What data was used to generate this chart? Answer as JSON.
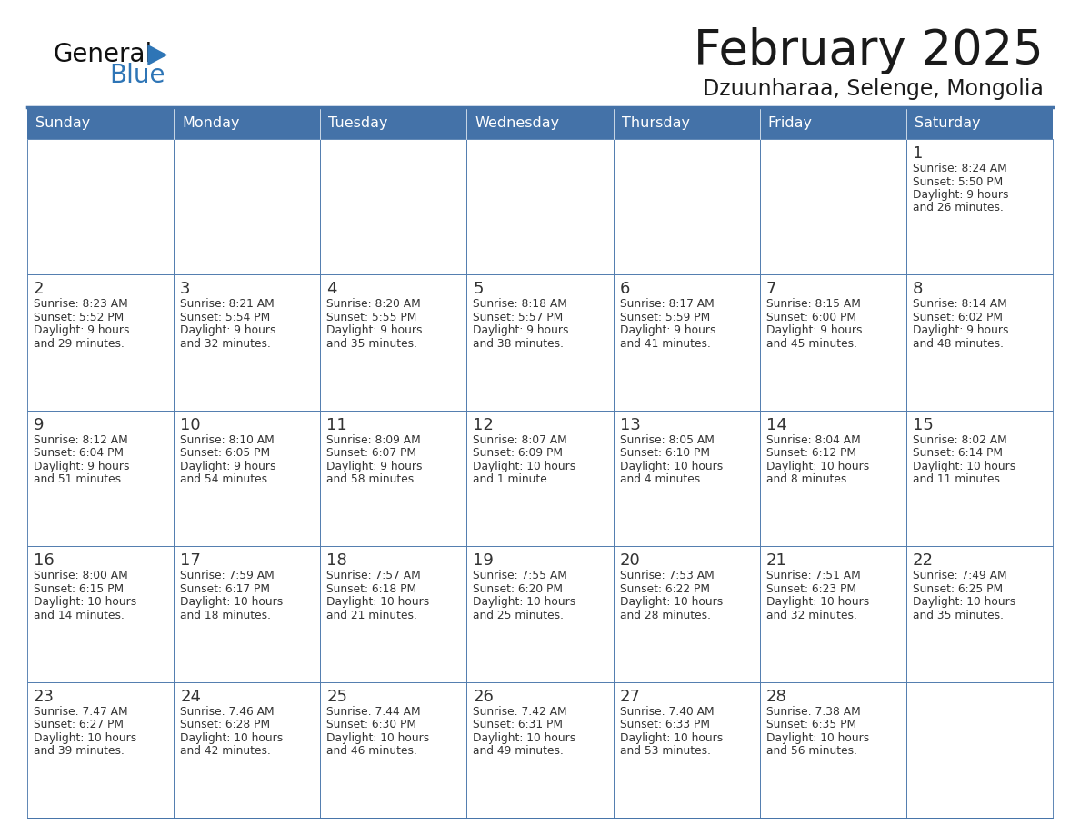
{
  "title": "February 2025",
  "subtitle": "Dzuunharaa, Selenge, Mongolia",
  "days_of_week": [
    "Sunday",
    "Monday",
    "Tuesday",
    "Wednesday",
    "Thursday",
    "Friday",
    "Saturday"
  ],
  "header_bg": "#4472a8",
  "header_text": "#FFFFFF",
  "cell_bg": "#FFFFFF",
  "cell_alt_bg": "#f0f4f8",
  "cell_border": "#4472a8",
  "day_num_color": "#333333",
  "info_text_color": "#333333",
  "title_color": "#1a1a1a",
  "subtitle_color": "#1a1a1a",
  "logo_general_color": "#111111",
  "logo_blue_color": "#2E75B6",
  "weeks": [
    [
      {
        "day": null,
        "info": ""
      },
      {
        "day": null,
        "info": ""
      },
      {
        "day": null,
        "info": ""
      },
      {
        "day": null,
        "info": ""
      },
      {
        "day": null,
        "info": ""
      },
      {
        "day": null,
        "info": ""
      },
      {
        "day": 1,
        "info": "Sunrise: 8:24 AM\nSunset: 5:50 PM\nDaylight: 9 hours\nand 26 minutes."
      }
    ],
    [
      {
        "day": 2,
        "info": "Sunrise: 8:23 AM\nSunset: 5:52 PM\nDaylight: 9 hours\nand 29 minutes."
      },
      {
        "day": 3,
        "info": "Sunrise: 8:21 AM\nSunset: 5:54 PM\nDaylight: 9 hours\nand 32 minutes."
      },
      {
        "day": 4,
        "info": "Sunrise: 8:20 AM\nSunset: 5:55 PM\nDaylight: 9 hours\nand 35 minutes."
      },
      {
        "day": 5,
        "info": "Sunrise: 8:18 AM\nSunset: 5:57 PM\nDaylight: 9 hours\nand 38 minutes."
      },
      {
        "day": 6,
        "info": "Sunrise: 8:17 AM\nSunset: 5:59 PM\nDaylight: 9 hours\nand 41 minutes."
      },
      {
        "day": 7,
        "info": "Sunrise: 8:15 AM\nSunset: 6:00 PM\nDaylight: 9 hours\nand 45 minutes."
      },
      {
        "day": 8,
        "info": "Sunrise: 8:14 AM\nSunset: 6:02 PM\nDaylight: 9 hours\nand 48 minutes."
      }
    ],
    [
      {
        "day": 9,
        "info": "Sunrise: 8:12 AM\nSunset: 6:04 PM\nDaylight: 9 hours\nand 51 minutes."
      },
      {
        "day": 10,
        "info": "Sunrise: 8:10 AM\nSunset: 6:05 PM\nDaylight: 9 hours\nand 54 minutes."
      },
      {
        "day": 11,
        "info": "Sunrise: 8:09 AM\nSunset: 6:07 PM\nDaylight: 9 hours\nand 58 minutes."
      },
      {
        "day": 12,
        "info": "Sunrise: 8:07 AM\nSunset: 6:09 PM\nDaylight: 10 hours\nand 1 minute."
      },
      {
        "day": 13,
        "info": "Sunrise: 8:05 AM\nSunset: 6:10 PM\nDaylight: 10 hours\nand 4 minutes."
      },
      {
        "day": 14,
        "info": "Sunrise: 8:04 AM\nSunset: 6:12 PM\nDaylight: 10 hours\nand 8 minutes."
      },
      {
        "day": 15,
        "info": "Sunrise: 8:02 AM\nSunset: 6:14 PM\nDaylight: 10 hours\nand 11 minutes."
      }
    ],
    [
      {
        "day": 16,
        "info": "Sunrise: 8:00 AM\nSunset: 6:15 PM\nDaylight: 10 hours\nand 14 minutes."
      },
      {
        "day": 17,
        "info": "Sunrise: 7:59 AM\nSunset: 6:17 PM\nDaylight: 10 hours\nand 18 minutes."
      },
      {
        "day": 18,
        "info": "Sunrise: 7:57 AM\nSunset: 6:18 PM\nDaylight: 10 hours\nand 21 minutes."
      },
      {
        "day": 19,
        "info": "Sunrise: 7:55 AM\nSunset: 6:20 PM\nDaylight: 10 hours\nand 25 minutes."
      },
      {
        "day": 20,
        "info": "Sunrise: 7:53 AM\nSunset: 6:22 PM\nDaylight: 10 hours\nand 28 minutes."
      },
      {
        "day": 21,
        "info": "Sunrise: 7:51 AM\nSunset: 6:23 PM\nDaylight: 10 hours\nand 32 minutes."
      },
      {
        "day": 22,
        "info": "Sunrise: 7:49 AM\nSunset: 6:25 PM\nDaylight: 10 hours\nand 35 minutes."
      }
    ],
    [
      {
        "day": 23,
        "info": "Sunrise: 7:47 AM\nSunset: 6:27 PM\nDaylight: 10 hours\nand 39 minutes."
      },
      {
        "day": 24,
        "info": "Sunrise: 7:46 AM\nSunset: 6:28 PM\nDaylight: 10 hours\nand 42 minutes."
      },
      {
        "day": 25,
        "info": "Sunrise: 7:44 AM\nSunset: 6:30 PM\nDaylight: 10 hours\nand 46 minutes."
      },
      {
        "day": 26,
        "info": "Sunrise: 7:42 AM\nSunset: 6:31 PM\nDaylight: 10 hours\nand 49 minutes."
      },
      {
        "day": 27,
        "info": "Sunrise: 7:40 AM\nSunset: 6:33 PM\nDaylight: 10 hours\nand 53 minutes."
      },
      {
        "day": 28,
        "info": "Sunrise: 7:38 AM\nSunset: 6:35 PM\nDaylight: 10 hours\nand 56 minutes."
      },
      {
        "day": null,
        "info": ""
      }
    ]
  ]
}
